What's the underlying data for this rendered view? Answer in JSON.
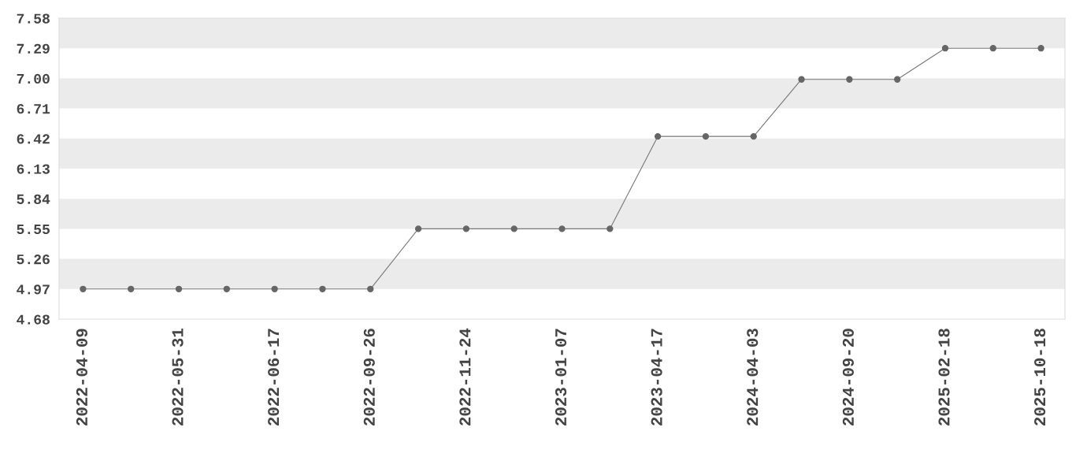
{
  "chart_data": {
    "type": "line",
    "categories": [
      "2022-04-09",
      null,
      "2022-05-31",
      null,
      "2022-06-17",
      null,
      "2022-09-26",
      null,
      "2022-11-24",
      null,
      "2023-01-07",
      null,
      "2023-04-17",
      null,
      "2024-04-03",
      null,
      "2024-09-20",
      null,
      "2025-02-18",
      null,
      "2025-10-18"
    ],
    "series": [
      {
        "color": "#777777",
        "values": [
          4.97,
          4.97,
          4.97,
          4.97,
          4.97,
          4.97,
          4.97,
          5.55,
          5.55,
          5.55,
          5.55,
          5.55,
          6.44,
          6.44,
          6.44,
          6.99,
          6.99,
          6.99,
          7.29,
          7.29,
          7.29
        ]
      }
    ],
    "ylim": [
      4.68,
      7.58
    ],
    "yticks": [
      {
        "value": 4.68,
        "label": "4.68"
      },
      {
        "value": 4.97,
        "label": "4.97"
      },
      {
        "value": 5.26,
        "label": "5.26"
      },
      {
        "value": 5.55,
        "label": "5.55"
      },
      {
        "value": 5.84,
        "label": "5.84"
      },
      {
        "value": 6.13,
        "label": "6.13"
      },
      {
        "value": 6.42,
        "label": "6.42"
      },
      {
        "value": 6.71,
        "label": "6.71"
      },
      {
        "value": 7.0,
        "label": "7.00"
      },
      {
        "value": 7.29,
        "label": "7.29"
      },
      {
        "value": 7.58,
        "label": "7.58"
      }
    ],
    "bands": [
      {
        "axis": "y",
        "from": 4.97,
        "to": 5.26,
        "color": "#ebebeb"
      },
      {
        "axis": "y",
        "from": 5.55,
        "to": 5.84,
        "color": "#ebebeb"
      },
      {
        "axis": "y",
        "from": 6.13,
        "to": 6.42,
        "color": "#ebebeb"
      },
      {
        "axis": "y",
        "from": 6.71,
        "to": 7.0,
        "color": "#ebebeb"
      },
      {
        "axis": "y",
        "from": 7.29,
        "to": 7.58,
        "color": "#ebebeb"
      }
    ],
    "grid": false,
    "marker": "circle",
    "line_style": "solid"
  }
}
